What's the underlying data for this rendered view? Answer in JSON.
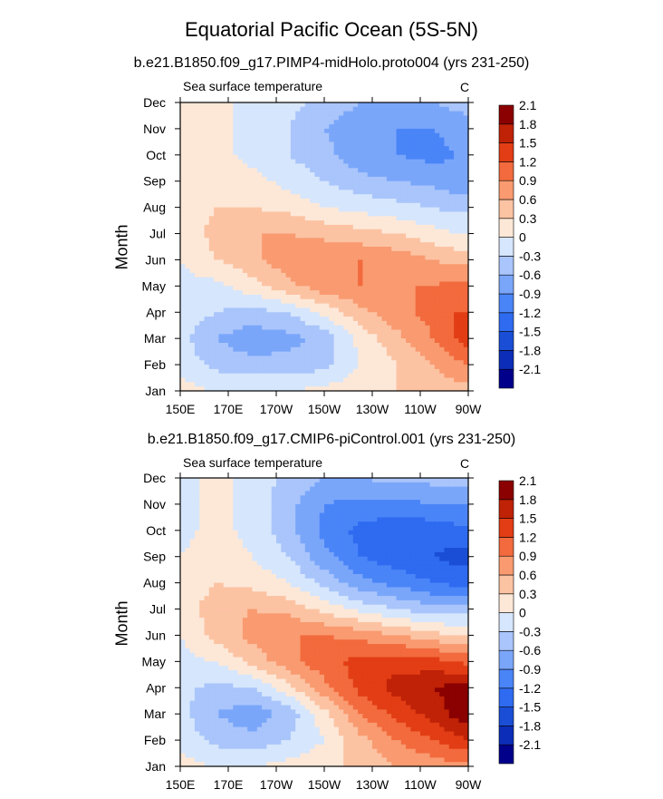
{
  "title": "Equatorial Pacific Ocean (5S-5N)",
  "colors": [
    "#00008b",
    "#0c2db8",
    "#1a4ed6",
    "#2e6bf0",
    "#4a85f8",
    "#7aa6fa",
    "#a9c5fb",
    "#d6e6fc",
    "#fde8d8",
    "#fcc3a3",
    "#f99a70",
    "#f26a3d",
    "#e23d14",
    "#bf2206",
    "#8b0000"
  ],
  "chart_data": [
    {
      "type": "heatmap",
      "title": "b.e21.B1850.f09_g17.PIMP4-midHolo.proto004 (yrs 231-250)",
      "panel_label": "Sea surface temperature",
      "units": "C",
      "xlabel": "",
      "ylabel": "Month",
      "xticks": [
        "150E",
        "170E",
        "170W",
        "150W",
        "130W",
        "110W",
        "90W"
      ],
      "xlim": [
        150,
        270
      ],
      "yticks": [
        "Jan",
        "Feb",
        "Mar",
        "Apr",
        "May",
        "Jun",
        "Jul",
        "Aug",
        "Sep",
        "Oct",
        "Nov",
        "Dec"
      ],
      "colorbar_levels": [
        -2.1,
        -1.8,
        -1.5,
        -1.2,
        -0.9,
        -0.6,
        -0.3,
        0,
        0.3,
        0.6,
        0.9,
        1.2,
        1.5,
        1.8,
        2.1
      ],
      "lons": [
        150,
        165,
        180,
        195,
        210,
        225,
        240,
        255,
        265,
        270
      ],
      "values": [
        [
          0.1,
          0.0,
          0.0,
          0.0,
          0.1,
          0.2,
          0.3,
          0.4,
          0.5,
          0.5
        ],
        [
          -0.1,
          -0.4,
          -0.5,
          -0.5,
          -0.4,
          0.0,
          0.3,
          0.6,
          0.8,
          0.9
        ],
        [
          -0.2,
          -0.6,
          -0.8,
          -0.7,
          -0.5,
          0.1,
          0.5,
          0.9,
          1.2,
          1.4
        ],
        [
          -0.1,
          -0.3,
          -0.4,
          -0.3,
          0.1,
          0.5,
          0.8,
          1.0,
          1.2,
          1.2
        ],
        [
          -0.1,
          -0.1,
          0.2,
          0.5,
          0.8,
          0.9,
          0.9,
          0.9,
          1.0,
          1.0
        ],
        [
          0.0,
          0.3,
          0.5,
          0.8,
          0.9,
          0.9,
          0.8,
          0.6,
          0.5,
          0.5
        ],
        [
          0.1,
          0.4,
          0.6,
          0.6,
          0.5,
          0.4,
          0.3,
          0.1,
          0.0,
          0.0
        ],
        [
          0.1,
          0.3,
          0.3,
          0.2,
          0.0,
          -0.1,
          -0.2,
          -0.3,
          -0.4,
          -0.4
        ],
        [
          0.1,
          0.2,
          0.1,
          -0.1,
          -0.3,
          -0.5,
          -0.6,
          -0.7,
          -0.8,
          -0.8
        ],
        [
          0.2,
          0.1,
          -0.1,
          -0.3,
          -0.5,
          -0.8,
          -0.9,
          -1.0,
          -0.9,
          -0.8
        ],
        [
          0.3,
          0.1,
          -0.1,
          -0.3,
          -0.6,
          -0.8,
          -0.9,
          -0.9,
          -0.8,
          -0.7
        ],
        [
          0.3,
          0.1,
          -0.1,
          -0.2,
          -0.4,
          -0.6,
          -0.6,
          -0.6,
          -0.5,
          -0.5
        ]
      ]
    },
    {
      "type": "heatmap",
      "title": "b.e21.B1850.f09_g17.CMIP6-piControl.001 (yrs 231-250)",
      "panel_label": "Sea surface temperature",
      "units": "C",
      "xlabel": "",
      "ylabel": "Month",
      "xticks": [
        "150E",
        "170E",
        "170W",
        "150W",
        "130W",
        "110W",
        "90W"
      ],
      "xlim": [
        150,
        270
      ],
      "yticks": [
        "Jan",
        "Feb",
        "Mar",
        "Apr",
        "May",
        "Jun",
        "Jul",
        "Aug",
        "Sep",
        "Oct",
        "Nov",
        "Dec"
      ],
      "colorbar_levels": [
        -2.1,
        -1.8,
        -1.5,
        -1.2,
        -0.9,
        -0.6,
        -0.3,
        0,
        0.3,
        0.6,
        0.9,
        1.2,
        1.5,
        1.8,
        2.1
      ],
      "lons": [
        150,
        165,
        180,
        195,
        210,
        225,
        240,
        255,
        265,
        270
      ],
      "values": [
        [
          0.1,
          0.0,
          0.0,
          0.1,
          0.2,
          0.4,
          0.6,
          0.7,
          0.8,
          0.8
        ],
        [
          -0.1,
          -0.4,
          -0.5,
          -0.3,
          0.0,
          0.5,
          0.9,
          1.2,
          1.4,
          1.5
        ],
        [
          -0.2,
          -0.6,
          -0.8,
          -0.5,
          0.2,
          0.9,
          1.3,
          1.6,
          1.9,
          2.0
        ],
        [
          -0.2,
          -0.4,
          -0.3,
          0.2,
          0.8,
          1.3,
          1.6,
          1.8,
          1.9,
          1.9
        ],
        [
          -0.1,
          0.0,
          0.4,
          0.8,
          1.1,
          1.3,
          1.4,
          1.3,
          1.2,
          1.1
        ],
        [
          0.0,
          0.4,
          0.7,
          0.9,
          0.9,
          0.8,
          0.6,
          0.4,
          0.3,
          0.3
        ],
        [
          0.1,
          0.5,
          0.6,
          0.5,
          0.2,
          -0.1,
          -0.3,
          -0.5,
          -0.5,
          -0.5
        ],
        [
          0.0,
          0.3,
          0.2,
          0.0,
          -0.4,
          -0.8,
          -1.0,
          -1.2,
          -1.3,
          -1.3
        ],
        [
          0.0,
          0.2,
          0.0,
          -0.3,
          -0.8,
          -1.2,
          -1.4,
          -1.5,
          -1.6,
          -1.6
        ],
        [
          -0.1,
          0.1,
          -0.1,
          -0.5,
          -1.0,
          -1.3,
          -1.4,
          -1.4,
          -1.3,
          -1.3
        ],
        [
          -0.1,
          0.1,
          -0.1,
          -0.5,
          -0.9,
          -1.0,
          -1.0,
          -0.9,
          -0.9,
          -0.9
        ],
        [
          -0.1,
          0.1,
          -0.1,
          -0.4,
          -0.6,
          -0.6,
          -0.5,
          -0.5,
          -0.5,
          -0.5
        ]
      ]
    }
  ]
}
